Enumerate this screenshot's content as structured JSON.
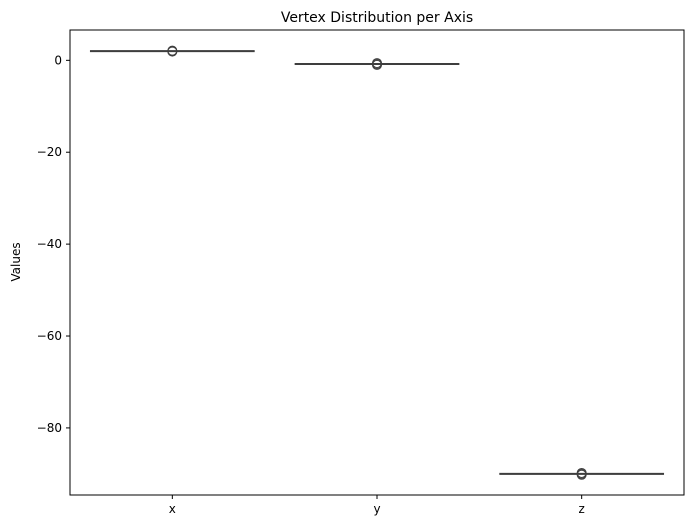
{
  "chart_data": {
    "type": "box",
    "title": "Vertex Distribution per Axis",
    "xlabel": "",
    "ylabel": "Values",
    "categories": [
      "x",
      "y",
      "z"
    ],
    "series": [
      {
        "category": "x",
        "q1": 2.0,
        "median": 2.0,
        "q3": 2.0,
        "whisker_low": 2.0,
        "whisker_high": 2.0,
        "outliers": [
          2.0,
          2.1,
          1.9
        ]
      },
      {
        "category": "y",
        "q1": -0.8,
        "median": -0.8,
        "q3": -0.8,
        "whisker_low": -0.8,
        "whisker_high": -0.8,
        "outliers": [
          -0.6,
          -0.8,
          -1.0
        ]
      },
      {
        "category": "z",
        "q1": -90.0,
        "median": -90.0,
        "q3": -90.0,
        "whisker_low": -90.0,
        "whisker_high": -90.0,
        "outliers": [
          -89.8,
          -90.0,
          -90.2
        ]
      }
    ],
    "yticks": [
      0,
      -20,
      -40,
      -60,
      -80
    ],
    "ytick_labels": [
      "0",
      "−20",
      "−40",
      "−60",
      "−80"
    ],
    "ylim": [
      -94.6,
      6.6
    ],
    "grid": false,
    "colors": {
      "box_line": "#3f3f3f",
      "axis": "#000000"
    }
  }
}
